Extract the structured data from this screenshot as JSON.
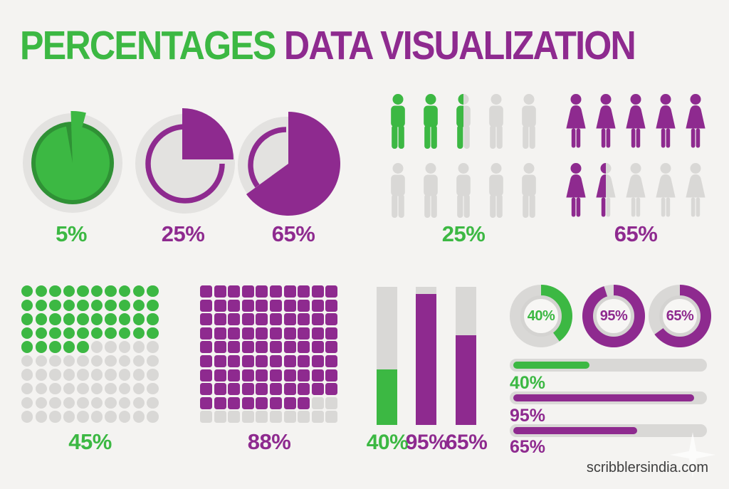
{
  "title": {
    "part1": "PERCENTAGES",
    "part2": "DATA VISUALIZATION"
  },
  "colors": {
    "green": "#3cb843",
    "green_dark": "#2f9135",
    "purple": "#8e2a8f",
    "purple_dark": "#6f1f72",
    "gray": "#d9d8d6",
    "gray_light": "#e3e2e0",
    "donut_hole": "#f7f6f4",
    "donut_hole_ring": "#d4d3d1",
    "background": "#f4f3f1",
    "footer_text": "#3e3e3e"
  },
  "chart_data": [
    {
      "id": "pie-5",
      "type": "pie",
      "value": 5,
      "label": "5%",
      "color": "green"
    },
    {
      "id": "pie-25",
      "type": "pie",
      "value": 25,
      "label": "25%",
      "color": "purple"
    },
    {
      "id": "pie-65",
      "type": "pie",
      "value": 65,
      "label": "65%",
      "color": "purple"
    },
    {
      "id": "pictogram-men",
      "type": "pictogram",
      "icon": "male",
      "value": 25,
      "label": "25%",
      "color": "green",
      "total": 10,
      "per_row": 5,
      "filled": 2.5
    },
    {
      "id": "pictogram-women",
      "type": "pictogram",
      "icon": "female",
      "value": 65,
      "label": "65%",
      "color": "purple",
      "total": 10,
      "per_row": 5,
      "filled": 6.5
    },
    {
      "id": "dot-matrix",
      "type": "waffle",
      "shape": "dot",
      "value": 45,
      "label": "45%",
      "color": "green",
      "rows": 10,
      "cols": 10,
      "filled": 45
    },
    {
      "id": "square-matrix",
      "type": "waffle",
      "shape": "square",
      "value": 88,
      "label": "88%",
      "color": "purple",
      "rows": 10,
      "cols": 10,
      "filled": 88
    },
    {
      "id": "vertical-bars",
      "type": "bar",
      "values": [
        40,
        95,
        65
      ],
      "labels": [
        "40%",
        "95%",
        "65%"
      ],
      "colors": [
        "green",
        "purple",
        "purple"
      ],
      "ylim": [
        0,
        100
      ]
    },
    {
      "id": "donuts",
      "type": "donut",
      "values": [
        40,
        95,
        65
      ],
      "labels": [
        "40%",
        "95%",
        "65%"
      ],
      "colors": [
        "green",
        "purple",
        "purple"
      ]
    },
    {
      "id": "progress-bars",
      "type": "progress",
      "values": [
        40,
        95,
        65
      ],
      "labels": [
        "40%",
        "95%",
        "65%"
      ],
      "colors": [
        "green",
        "purple",
        "purple"
      ]
    }
  ],
  "footer": {
    "website": "scribblersindia.com"
  }
}
